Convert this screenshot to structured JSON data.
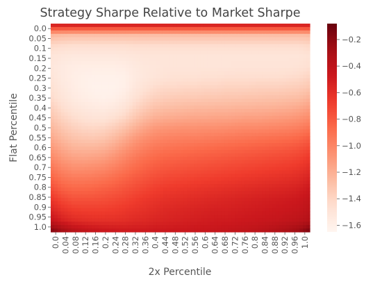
{
  "chart_data": {
    "type": "heatmap",
    "title": "Strategy Sharpe Relative to Market Sharpe",
    "xlabel": "2x Percentile",
    "ylabel": "Flat Percentile",
    "x_ticks": [
      "0.0",
      "0.04",
      "0.08",
      "0.12",
      "0.16",
      "0.2",
      "0.24",
      "0.28",
      "0.32",
      "0.36",
      "0.4",
      "0.44",
      "0.48",
      "0.52",
      "0.56",
      "0.6",
      "0.64",
      "0.68",
      "0.72",
      "0.76",
      "0.8",
      "0.84",
      "0.88",
      "0.92",
      "0.96",
      "1.0"
    ],
    "y_ticks": [
      "0.0",
      "0.05",
      "0.1",
      "0.15",
      "0.2",
      "0.25",
      "0.3",
      "0.35",
      "0.4",
      "0.45",
      "0.5",
      "0.55",
      "0.6",
      "0.65",
      "0.7",
      "0.75",
      "0.8",
      "0.85",
      "0.9",
      "0.95",
      "1.0"
    ],
    "colorbar": {
      "ticks": [
        -0.2,
        -0.4,
        -0.6,
        -0.8,
        -1.0,
        -1.2,
        -1.4,
        -1.6
      ],
      "tick_labels": [
        "−0.2",
        "−0.4",
        "−0.6",
        "−0.8",
        "−1.0",
        "−1.2",
        "−1.4",
        "−1.6"
      ],
      "vmin": -1.65,
      "vmax": -0.08
    },
    "colormap": "Reds",
    "grid": false,
    "values_by_flat_percentile": [
      [
        -0.55,
        -0.55,
        -0.55,
        -0.55,
        -0.55,
        -0.55,
        -0.55,
        -0.55,
        -0.55,
        -0.55,
        -0.55,
        -0.55,
        -0.55,
        -0.55,
        -0.55,
        -0.55,
        -0.55,
        -0.55,
        -0.55,
        -0.55,
        -0.55,
        -0.55,
        -0.55,
        -0.55,
        -0.55,
        -0.55
      ],
      [
        -1.25,
        -1.27,
        -1.28,
        -1.28,
        -1.28,
        -1.28,
        -1.28,
        -1.28,
        -1.28,
        -1.28,
        -1.28,
        -1.28,
        -1.28,
        -1.28,
        -1.28,
        -1.28,
        -1.28,
        -1.28,
        -1.28,
        -1.28,
        -1.28,
        -1.28,
        -1.28,
        -1.28,
        -1.28,
        -1.27
      ],
      [
        -1.42,
        -1.44,
        -1.45,
        -1.45,
        -1.45,
        -1.45,
        -1.45,
        -1.45,
        -1.44,
        -1.44,
        -1.44,
        -1.44,
        -1.44,
        -1.44,
        -1.44,
        -1.44,
        -1.44,
        -1.44,
        -1.44,
        -1.44,
        -1.44,
        -1.44,
        -1.44,
        -1.44,
        -1.44,
        -1.42
      ],
      [
        -1.5,
        -1.52,
        -1.53,
        -1.53,
        -1.53,
        -1.53,
        -1.53,
        -1.52,
        -1.51,
        -1.5,
        -1.5,
        -1.5,
        -1.5,
        -1.5,
        -1.5,
        -1.5,
        -1.5,
        -1.5,
        -1.5,
        -1.5,
        -1.5,
        -1.5,
        -1.5,
        -1.5,
        -1.5,
        -1.48
      ],
      [
        -1.52,
        -1.55,
        -1.57,
        -1.58,
        -1.58,
        -1.58,
        -1.58,
        -1.57,
        -1.54,
        -1.52,
        -1.51,
        -1.5,
        -1.5,
        -1.5,
        -1.5,
        -1.5,
        -1.5,
        -1.5,
        -1.49,
        -1.49,
        -1.49,
        -1.49,
        -1.49,
        -1.49,
        -1.48,
        -1.46
      ],
      [
        -1.5,
        -1.55,
        -1.58,
        -1.6,
        -1.61,
        -1.61,
        -1.61,
        -1.6,
        -1.55,
        -1.52,
        -1.5,
        -1.48,
        -1.47,
        -1.47,
        -1.47,
        -1.46,
        -1.46,
        -1.45,
        -1.45,
        -1.45,
        -1.45,
        -1.45,
        -1.45,
        -1.44,
        -1.43,
        -1.4
      ],
      [
        -1.47,
        -1.53,
        -1.57,
        -1.6,
        -1.62,
        -1.62,
        -1.62,
        -1.6,
        -1.53,
        -1.48,
        -1.44,
        -1.42,
        -1.42,
        -1.41,
        -1.41,
        -1.4,
        -1.4,
        -1.39,
        -1.39,
        -1.39,
        -1.38,
        -1.38,
        -1.38,
        -1.37,
        -1.36,
        -1.33
      ],
      [
        -1.44,
        -1.5,
        -1.55,
        -1.58,
        -1.6,
        -1.61,
        -1.6,
        -1.56,
        -1.48,
        -1.42,
        -1.38,
        -1.36,
        -1.35,
        -1.34,
        -1.34,
        -1.33,
        -1.33,
        -1.32,
        -1.32,
        -1.31,
        -1.31,
        -1.3,
        -1.3,
        -1.29,
        -1.28,
        -1.24
      ],
      [
        -1.38,
        -1.45,
        -1.5,
        -1.53,
        -1.55,
        -1.56,
        -1.54,
        -1.49,
        -1.41,
        -1.35,
        -1.3,
        -1.28,
        -1.27,
        -1.26,
        -1.25,
        -1.25,
        -1.24,
        -1.24,
        -1.23,
        -1.23,
        -1.22,
        -1.22,
        -1.21,
        -1.2,
        -1.18,
        -1.14
      ],
      [
        -1.32,
        -1.39,
        -1.44,
        -1.47,
        -1.49,
        -1.49,
        -1.46,
        -1.41,
        -1.33,
        -1.26,
        -1.21,
        -1.19,
        -1.18,
        -1.17,
        -1.16,
        -1.16,
        -1.15,
        -1.15,
        -1.14,
        -1.13,
        -1.13,
        -1.12,
        -1.11,
        -1.1,
        -1.08,
        -1.04
      ],
      [
        -1.25,
        -1.32,
        -1.37,
        -1.4,
        -1.41,
        -1.4,
        -1.36,
        -1.3,
        -1.22,
        -1.15,
        -1.1,
        -1.08,
        -1.07,
        -1.06,
        -1.06,
        -1.05,
        -1.05,
        -1.04,
        -1.03,
        -1.02,
        -1.02,
        -1.01,
        -1.0,
        -0.99,
        -0.97,
        -0.93
      ],
      [
        -1.18,
        -1.25,
        -1.3,
        -1.32,
        -1.33,
        -1.31,
        -1.26,
        -1.19,
        -1.11,
        -1.05,
        -1.01,
        -0.99,
        -0.98,
        -0.97,
        -0.97,
        -0.96,
        -0.95,
        -0.94,
        -0.93,
        -0.92,
        -0.91,
        -0.9,
        -0.89,
        -0.88,
        -0.86,
        -0.82
      ],
      [
        -1.1,
        -1.17,
        -1.22,
        -1.23,
        -1.23,
        -1.21,
        -1.16,
        -1.09,
        -1.02,
        -0.97,
        -0.93,
        -0.91,
        -0.9,
        -0.89,
        -0.88,
        -0.87,
        -0.86,
        -0.85,
        -0.84,
        -0.83,
        -0.82,
        -0.81,
        -0.8,
        -0.79,
        -0.77,
        -0.73
      ],
      [
        -1.02,
        -1.09,
        -1.13,
        -1.14,
        -1.13,
        -1.11,
        -1.06,
        -1.0,
        -0.94,
        -0.89,
        -0.86,
        -0.84,
        -0.83,
        -0.82,
        -0.81,
        -0.8,
        -0.79,
        -0.78,
        -0.77,
        -0.76,
        -0.75,
        -0.74,
        -0.73,
        -0.72,
        -0.7,
        -0.66
      ],
      [
        -0.93,
        -1.0,
        -1.04,
        -1.04,
        -1.03,
        -1.01,
        -0.97,
        -0.92,
        -0.87,
        -0.83,
        -0.8,
        -0.78,
        -0.77,
        -0.76,
        -0.75,
        -0.74,
        -0.73,
        -0.72,
        -0.71,
        -0.7,
        -0.69,
        -0.68,
        -0.67,
        -0.66,
        -0.64,
        -0.6
      ],
      [
        -0.84,
        -0.91,
        -0.94,
        -0.94,
        -0.93,
        -0.91,
        -0.88,
        -0.84,
        -0.8,
        -0.77,
        -0.74,
        -0.72,
        -0.71,
        -0.7,
        -0.69,
        -0.68,
        -0.67,
        -0.66,
        -0.65,
        -0.64,
        -0.63,
        -0.62,
        -0.61,
        -0.6,
        -0.58,
        -0.54
      ],
      [
        -0.75,
        -0.82,
        -0.85,
        -0.85,
        -0.84,
        -0.82,
        -0.8,
        -0.77,
        -0.74,
        -0.71,
        -0.68,
        -0.66,
        -0.65,
        -0.64,
        -0.63,
        -0.62,
        -0.61,
        -0.6,
        -0.59,
        -0.58,
        -0.57,
        -0.56,
        -0.55,
        -0.54,
        -0.52,
        -0.48
      ],
      [
        -0.65,
        -0.72,
        -0.76,
        -0.76,
        -0.76,
        -0.75,
        -0.73,
        -0.71,
        -0.68,
        -0.65,
        -0.63,
        -0.61,
        -0.6,
        -0.59,
        -0.58,
        -0.57,
        -0.56,
        -0.55,
        -0.54,
        -0.53,
        -0.52,
        -0.51,
        -0.5,
        -0.49,
        -0.47,
        -0.43
      ],
      [
        -0.56,
        -0.63,
        -0.67,
        -0.68,
        -0.68,
        -0.68,
        -0.67,
        -0.65,
        -0.63,
        -0.61,
        -0.59,
        -0.57,
        -0.56,
        -0.55,
        -0.54,
        -0.53,
        -0.52,
        -0.52,
        -0.51,
        -0.5,
        -0.49,
        -0.48,
        -0.47,
        -0.46,
        -0.44,
        -0.4
      ],
      [
        -0.45,
        -0.53,
        -0.58,
        -0.6,
        -0.61,
        -0.61,
        -0.61,
        -0.6,
        -0.58,
        -0.57,
        -0.55,
        -0.54,
        -0.53,
        -0.52,
        -0.51,
        -0.5,
        -0.49,
        -0.49,
        -0.48,
        -0.47,
        -0.46,
        -0.45,
        -0.44,
        -0.42,
        -0.4,
        -0.36
      ],
      [
        -0.2,
        -0.3,
        -0.38,
        -0.42,
        -0.45,
        -0.47,
        -0.48,
        -0.49,
        -0.49,
        -0.49,
        -0.48,
        -0.48,
        -0.47,
        -0.47,
        -0.46,
        -0.46,
        -0.45,
        -0.44,
        -0.43,
        -0.42,
        -0.4,
        -0.38,
        -0.35,
        -0.32,
        -0.27,
        -0.18
      ]
    ]
  }
}
